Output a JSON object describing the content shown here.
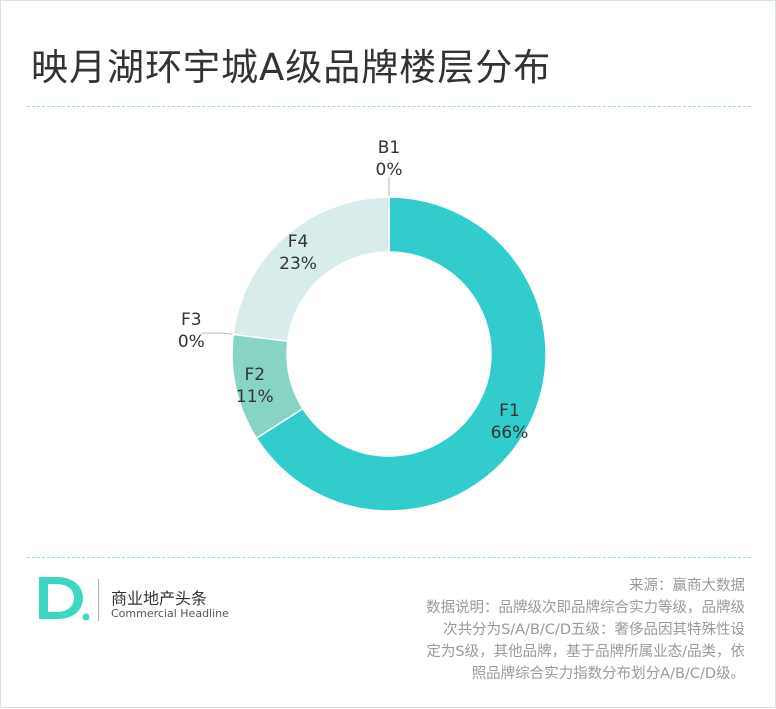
{
  "title": "映月湖环宇城A级品牌楼层分布",
  "chart_data": {
    "type": "pie",
    "donut": true,
    "slices": [
      {
        "label": "B1",
        "value": 0,
        "percent": "0%",
        "color": "#b0d4d4"
      },
      {
        "label": "F1",
        "value": 66,
        "percent": "66%",
        "color": "#33cccc"
      },
      {
        "label": "F2",
        "value": 11,
        "percent": "11%",
        "color": "#88d4c4"
      },
      {
        "label": "F3",
        "value": 0,
        "percent": "0%",
        "color": "#b0d4d4"
      },
      {
        "label": "F4",
        "value": 23,
        "percent": "23%",
        "color": "#d8ecec"
      }
    ]
  },
  "logo": {
    "name_cn": "商业地产头条",
    "name_en": "Commercial Headline",
    "accent_color": "#3dd6c0"
  },
  "notes": {
    "source": "来源：赢商大数据",
    "description_lines": [
      "数据说明：品牌级次即品牌综合实力等级，品牌级",
      "次共分为S/A/B/C/D五级：奢侈品因其特殊性设",
      "定为S级，其他品牌，基于品牌所属业态/品类，依",
      "照品牌综合实力指数分布划分A/B/C/D级。"
    ]
  }
}
